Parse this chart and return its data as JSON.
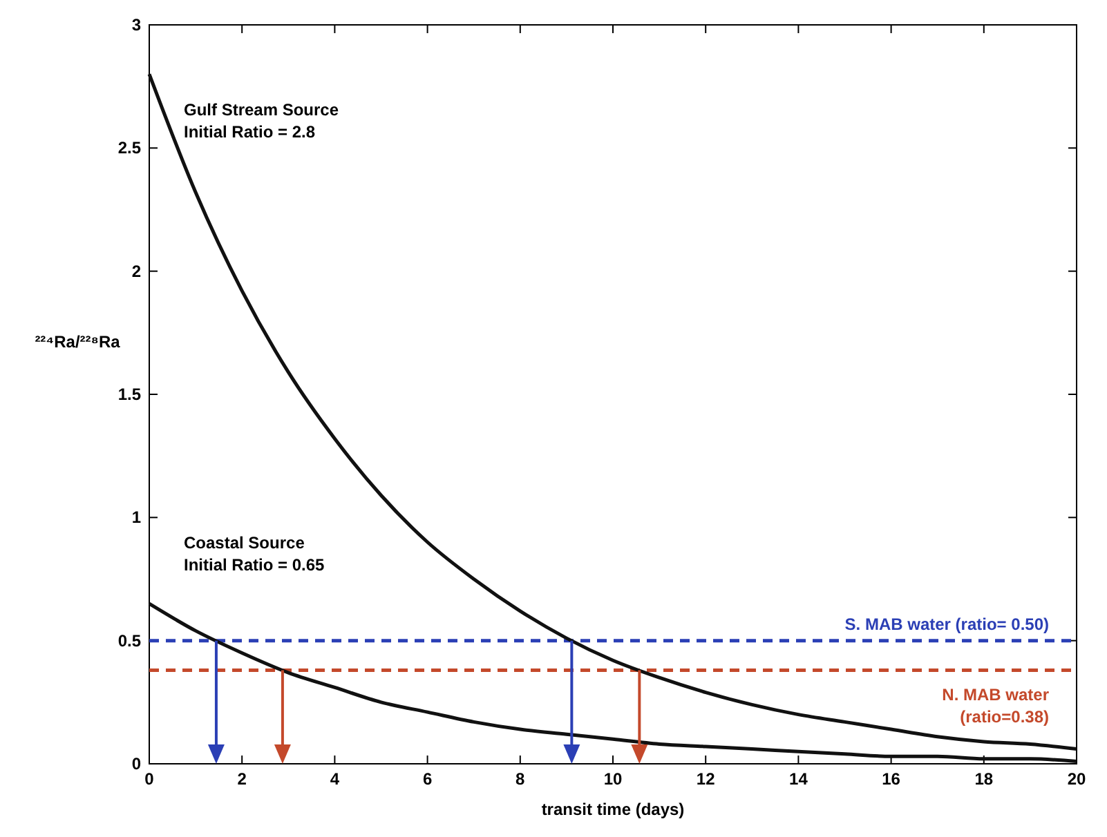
{
  "chart_data": {
    "type": "line",
    "xlabel": "transit time (days)",
    "ylabel": "²²⁴Ra/²²⁸Ra",
    "x": [
      0,
      1,
      2,
      3,
      4,
      5,
      6,
      7,
      8,
      9,
      10,
      11,
      12,
      13,
      14,
      15,
      16,
      17,
      18,
      19,
      20
    ],
    "series": [
      {
        "color": "#111111",
        "values": [
          2.8,
          2.32,
          1.92,
          1.59,
          1.32,
          1.09,
          0.9,
          0.75,
          0.62,
          0.51,
          0.42,
          0.35,
          0.29,
          0.24,
          0.2,
          0.17,
          0.14,
          0.11,
          0.09,
          0.08,
          0.06
        ]
      },
      {
        "color": "#111111",
        "values": [
          0.65,
          0.54,
          0.45,
          0.37,
          0.31,
          0.25,
          0.21,
          0.17,
          0.14,
          0.12,
          0.1,
          0.08,
          0.07,
          0.06,
          0.05,
          0.04,
          0.03,
          0.03,
          0.02,
          0.02,
          0.01
        ]
      }
    ],
    "annotations": [
      "Gulf Stream Source\nInitial Ratio = 2.8",
      "Coastal Source\nInitial Ratio = 0.65"
    ],
    "ref_lines": [
      {
        "axis": "y",
        "value": 0.5,
        "label": "S. MAB water (ratio= 0.50)",
        "color": "#2b3fb5",
        "line_style": "dashed"
      },
      {
        "axis": "y",
        "value": 0.38,
        "label": "N. MAB water\n(ratio=0.38)",
        "color": "#c4492b",
        "line_style": "dashed"
      }
    ],
    "xlim": [
      0,
      20
    ],
    "xticks": [
      0,
      2,
      4,
      6,
      8,
      10,
      12,
      14,
      16,
      18,
      20
    ],
    "ylim": [
      0,
      3
    ],
    "yticks": [
      0,
      0.5,
      1,
      1.5,
      2,
      2.5,
      3
    ],
    "grid": false,
    "marker": "none",
    "line_style": "solid"
  }
}
